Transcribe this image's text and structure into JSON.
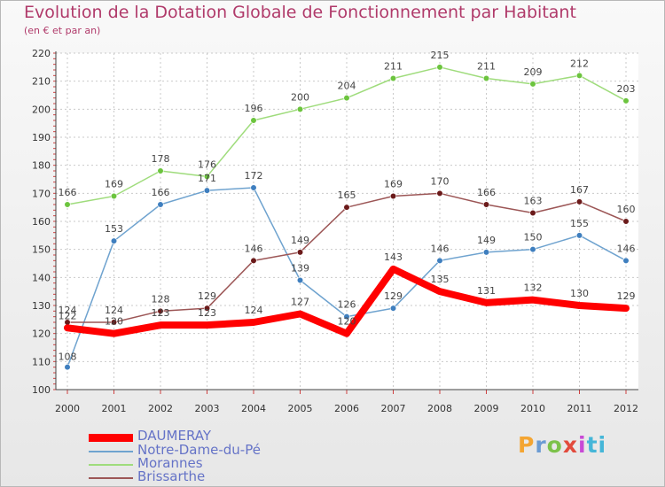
{
  "header": {
    "title": "Evolution de la Dotation Globale de Fonctionnement par Habitant",
    "subtitle": "(en € et par an)"
  },
  "logo": {
    "text": "Proxiti"
  },
  "chart_data": {
    "type": "line",
    "x": [
      2000,
      2001,
      2002,
      2003,
      2004,
      2005,
      2006,
      2007,
      2008,
      2009,
      2010,
      2011,
      2012
    ],
    "x_tick_labels": [
      "2000",
      "2001",
      "2002",
      "2003",
      "2004",
      "2005",
      "2006",
      "2007",
      "2008",
      "2009",
      "2010",
      "2011",
      "2012"
    ],
    "ylim": [
      100,
      220
    ],
    "y_ticks": [
      100,
      110,
      120,
      130,
      140,
      150,
      160,
      170,
      180,
      190,
      200,
      210,
      220
    ],
    "y_tick_labels": [
      "100",
      "110",
      "120",
      "130",
      "140",
      "150",
      "160",
      "170",
      "180",
      "190",
      "200",
      "210",
      "220"
    ],
    "grid": true,
    "legend_position": "bottom-left",
    "series": [
      {
        "name": "DAUMERAY",
        "color": "#ff0000",
        "values": [
          122,
          120,
          123,
          123,
          124,
          127,
          120,
          143,
          135,
          131,
          132,
          130,
          129
        ],
        "labels": [
          "122",
          "120",
          "123",
          "123",
          "124",
          "127",
          "120",
          "143",
          "135",
          "131",
          "132",
          "130",
          "129"
        ]
      },
      {
        "name": "Notre-Dame-du-Pé",
        "color": "#6fa3cf",
        "point_color": "#3f7fbf",
        "values": [
          108,
          153,
          166,
          171,
          172,
          139,
          126,
          129,
          146,
          149,
          150,
          155,
          146
        ],
        "labels": [
          "108",
          "153",
          "166",
          "171",
          "172",
          "139",
          "126",
          "129",
          "146",
          "149",
          "150",
          "155",
          "146"
        ]
      },
      {
        "name": "Morannes",
        "color": "#9fdc7c",
        "point_color": "#6cc43e",
        "values": [
          166,
          169,
          178,
          176,
          196,
          200,
          204,
          211,
          215,
          211,
          209,
          212,
          203
        ],
        "labels": [
          "166",
          "169",
          "178",
          "176",
          "196",
          "200",
          "204",
          "211",
          "215",
          "211",
          "209",
          "212",
          "203"
        ]
      },
      {
        "name": "Brissarthe",
        "color": "#9c5656",
        "point_color": "#6b1a1a",
        "values": [
          124,
          124,
          128,
          129,
          146,
          149,
          165,
          169,
          170,
          166,
          163,
          167,
          160
        ],
        "labels": [
          "124",
          "124",
          "128",
          "129",
          "146",
          "149",
          "165",
          "169",
          "170",
          "166",
          "163",
          "167",
          "160"
        ]
      }
    ]
  }
}
